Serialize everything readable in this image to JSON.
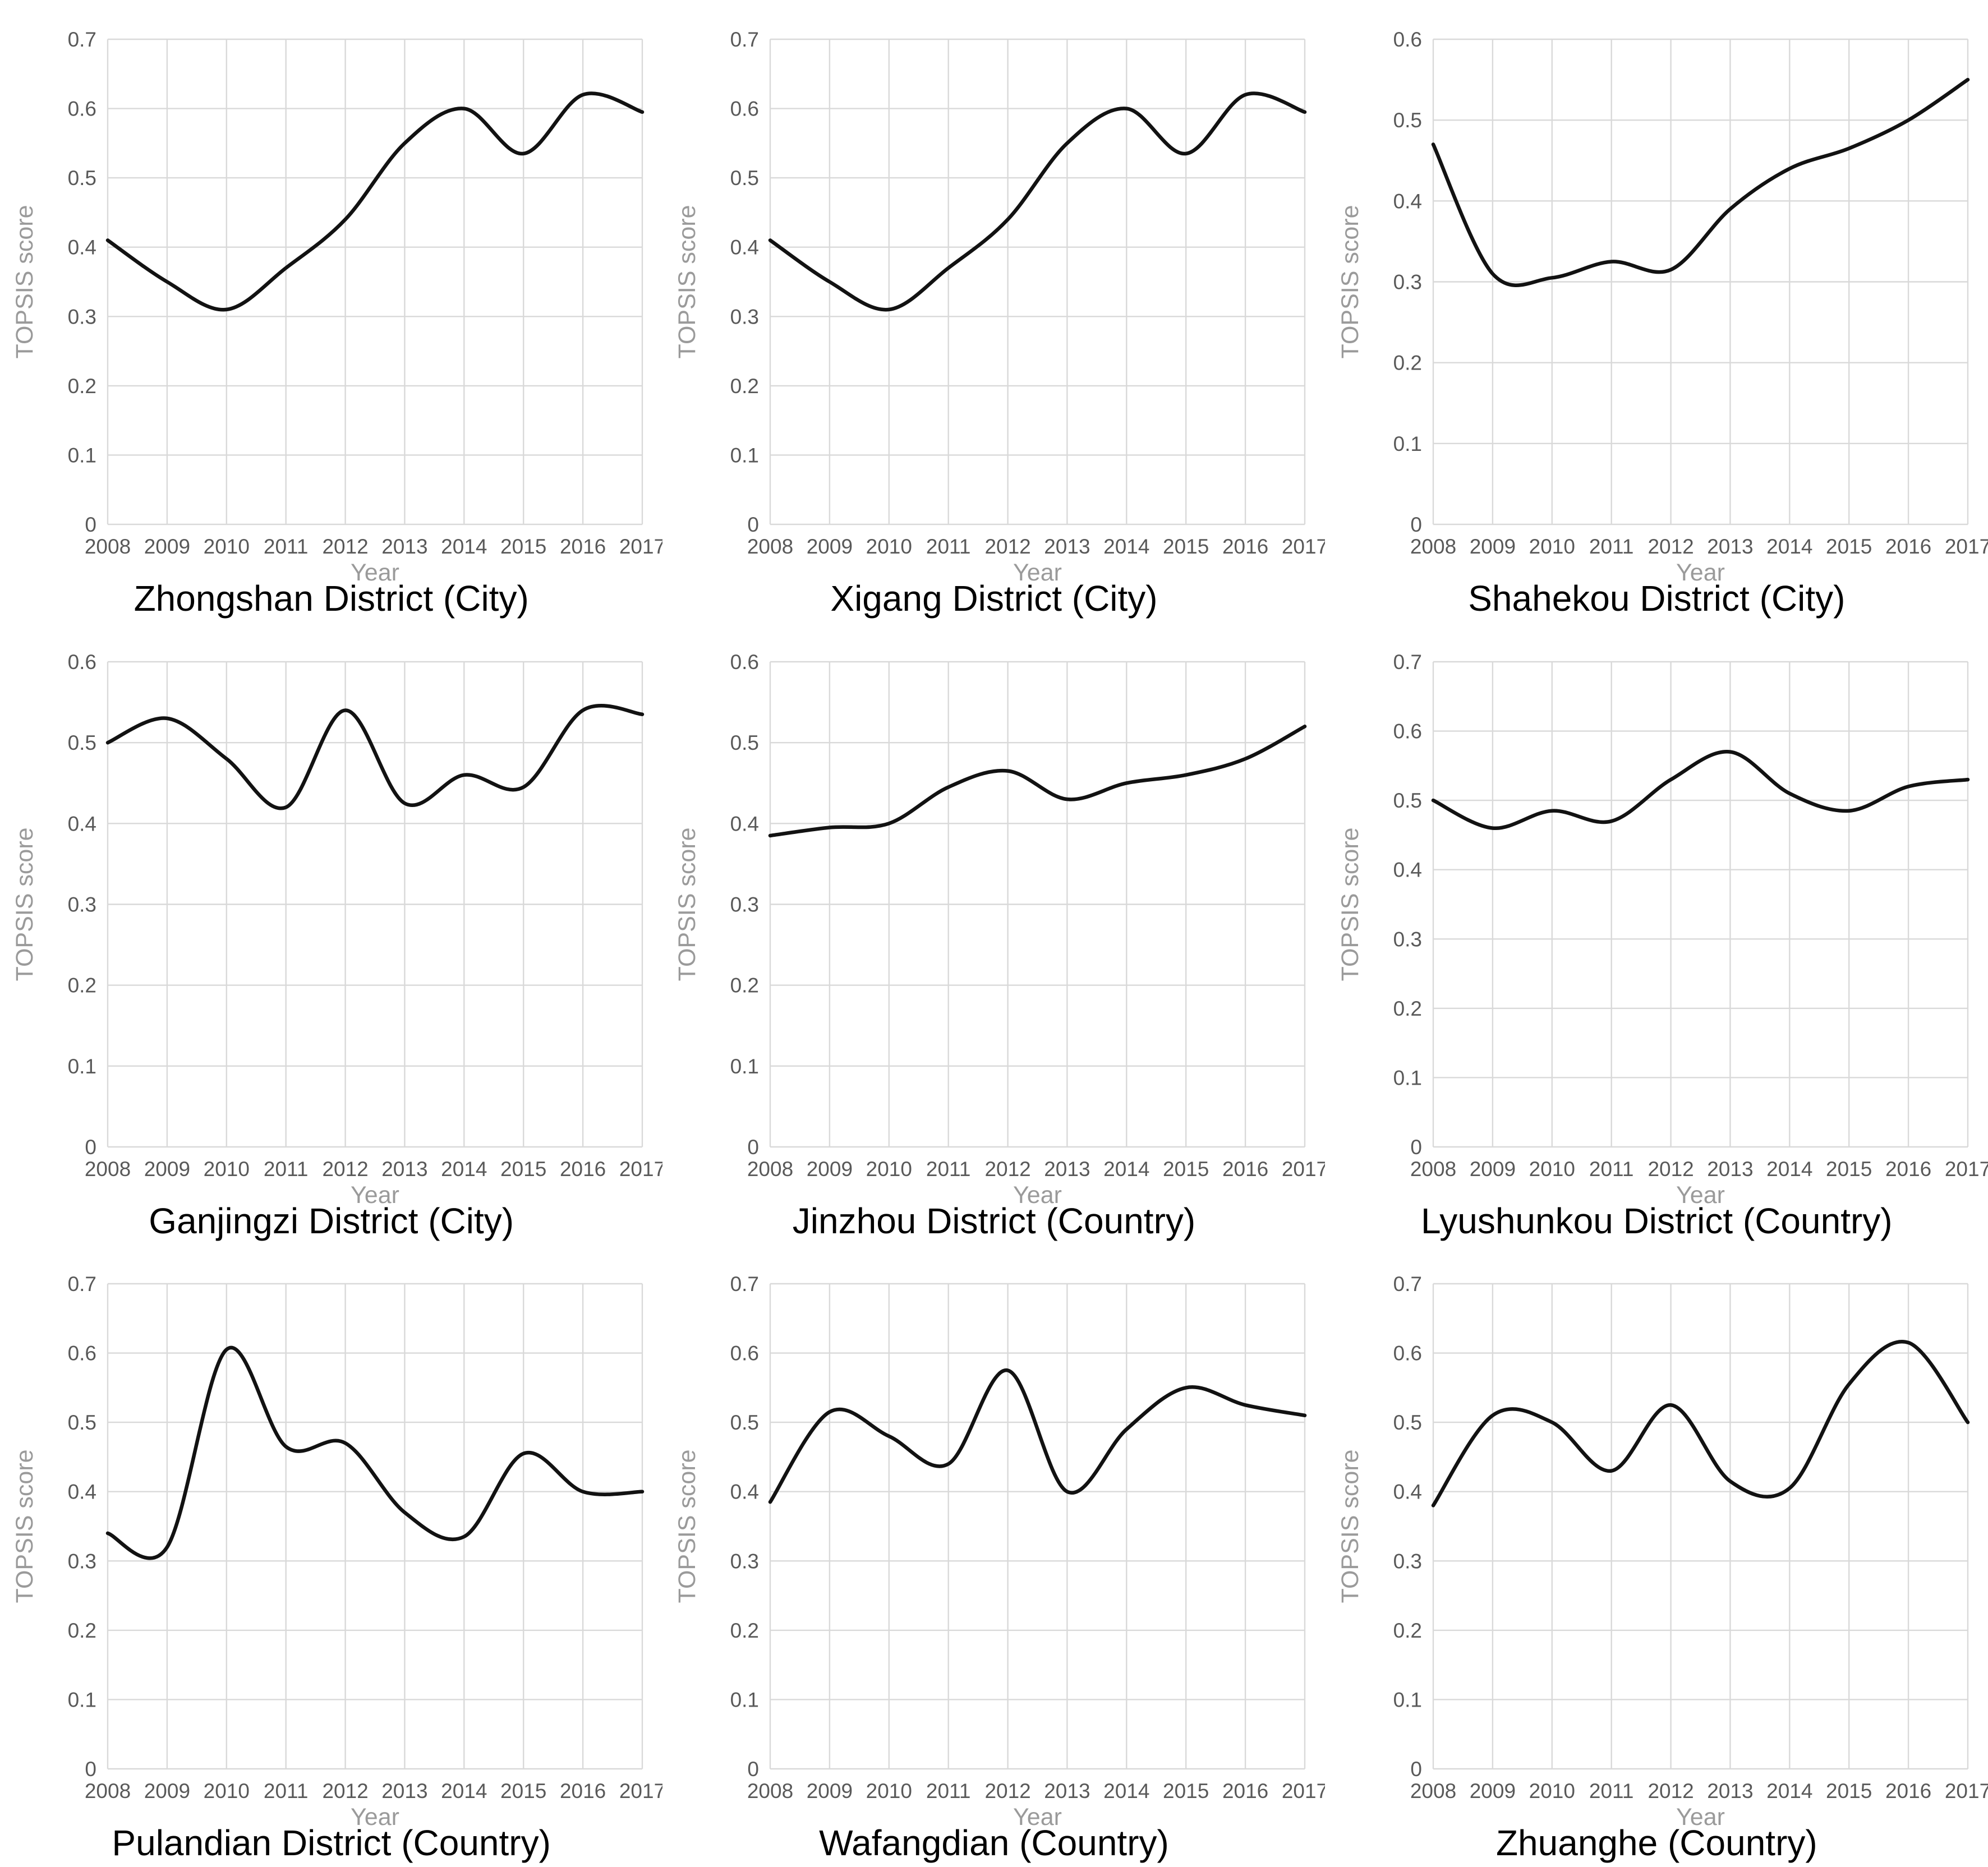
{
  "figure": {
    "description_title": "",
    "background": "#ffffff"
  },
  "style": {
    "grid_color": "#d9d9d9",
    "plot_border_color": "#d0d0d0",
    "axis_tick_color": "#595959",
    "axis_title_color": "#9a9a9a",
    "line_color": "#121212",
    "title_color": "#000000"
  },
  "chart_data": [
    {
      "type": "line",
      "title": "Zhongshan District (City)",
      "xlabel": "Year",
      "ylabel": "TOPSIS score",
      "x": [
        2008,
        2009,
        2010,
        2011,
        2012,
        2013,
        2014,
        2015,
        2016,
        2017
      ],
      "values": [
        0.41,
        0.35,
        0.31,
        0.37,
        0.44,
        0.55,
        0.6,
        0.535,
        0.62,
        0.595
      ],
      "ylim": [
        0,
        0.7
      ],
      "ytick_step": 0.1,
      "grid": true,
      "legend": "none"
    },
    {
      "type": "line",
      "title": "Xigang District (City)",
      "xlabel": "Year",
      "ylabel": "TOPSIS score",
      "x": [
        2008,
        2009,
        2010,
        2011,
        2012,
        2013,
        2014,
        2015,
        2016,
        2017
      ],
      "values": [
        0.41,
        0.35,
        0.31,
        0.37,
        0.44,
        0.55,
        0.6,
        0.535,
        0.62,
        0.595
      ],
      "ylim": [
        0,
        0.7
      ],
      "ytick_step": 0.1,
      "grid": true,
      "legend": "none"
    },
    {
      "type": "line",
      "title": "Shahekou District (City)",
      "xlabel": "Year",
      "ylabel": "TOPSIS score",
      "x": [
        2008,
        2009,
        2010,
        2011,
        2012,
        2013,
        2014,
        2015,
        2016,
        2017
      ],
      "values": [
        0.47,
        0.31,
        0.305,
        0.325,
        0.315,
        0.39,
        0.44,
        0.465,
        0.5,
        0.55
      ],
      "ylim": [
        0,
        0.6
      ],
      "ytick_step": 0.1,
      "grid": true,
      "legend": "none"
    },
    {
      "type": "line",
      "title": "Ganjingzi District (City)",
      "xlabel": "Year",
      "ylabel": "TOPSIS score",
      "x": [
        2008,
        2009,
        2010,
        2011,
        2012,
        2013,
        2014,
        2015,
        2016,
        2017
      ],
      "values": [
        0.5,
        0.53,
        0.48,
        0.42,
        0.54,
        0.425,
        0.46,
        0.445,
        0.54,
        0.535
      ],
      "ylim": [
        0,
        0.6
      ],
      "ytick_step": 0.1,
      "grid": true,
      "legend": "none"
    },
    {
      "type": "line",
      "title": "Jinzhou District (Country)",
      "xlabel": "Year",
      "ylabel": "TOPSIS score",
      "x": [
        2008,
        2009,
        2010,
        2011,
        2012,
        2013,
        2014,
        2015,
        2016,
        2017
      ],
      "values": [
        0.385,
        0.395,
        0.4,
        0.445,
        0.465,
        0.43,
        0.45,
        0.46,
        0.48,
        0.52
      ],
      "ylim": [
        0,
        0.6
      ],
      "ytick_step": 0.1,
      "grid": true,
      "legend": "none"
    },
    {
      "type": "line",
      "title": "Lyushunkou District (Country)",
      "xlabel": "Year",
      "ylabel": "TOPSIS score",
      "x": [
        2008,
        2009,
        2010,
        2011,
        2012,
        2013,
        2014,
        2015,
        2016,
        2017
      ],
      "values": [
        0.5,
        0.46,
        0.485,
        0.47,
        0.53,
        0.57,
        0.51,
        0.485,
        0.52,
        0.53
      ],
      "ylim": [
        0,
        0.7
      ],
      "ytick_step": 0.1,
      "grid": true,
      "legend": "none"
    },
    {
      "type": "line",
      "title": "Pulandian District (Country)",
      "xlabel": "Year",
      "ylabel": "TOPSIS score",
      "x": [
        2008,
        2009,
        2010,
        2011,
        2012,
        2013,
        2014,
        2015,
        2016,
        2017
      ],
      "values": [
        0.34,
        0.32,
        0.605,
        0.465,
        0.47,
        0.37,
        0.335,
        0.455,
        0.4,
        0.4
      ],
      "ylim": [
        0,
        0.7
      ],
      "ytick_step": 0.1,
      "grid": true,
      "legend": "none"
    },
    {
      "type": "line",
      "title": "Wafangdian (Country)",
      "xlabel": "Year",
      "ylabel": "TOPSIS score",
      "x": [
        2008,
        2009,
        2010,
        2011,
        2012,
        2013,
        2014,
        2015,
        2016,
        2017
      ],
      "values": [
        0.385,
        0.515,
        0.48,
        0.44,
        0.575,
        0.4,
        0.49,
        0.55,
        0.525,
        0.51
      ],
      "ylim": [
        0,
        0.7
      ],
      "ytick_step": 0.1,
      "grid": true,
      "legend": "none"
    },
    {
      "type": "line",
      "title": "Zhuanghe (Country)",
      "xlabel": "Year",
      "ylabel": "TOPSIS score",
      "x": [
        2008,
        2009,
        2010,
        2011,
        2012,
        2013,
        2014,
        2015,
        2016,
        2017
      ],
      "values": [
        0.38,
        0.51,
        0.5,
        0.43,
        0.525,
        0.415,
        0.405,
        0.555,
        0.615,
        0.5
      ],
      "ylim": [
        0,
        0.7
      ],
      "ytick_step": 0.1,
      "grid": true,
      "legend": "none"
    }
  ]
}
